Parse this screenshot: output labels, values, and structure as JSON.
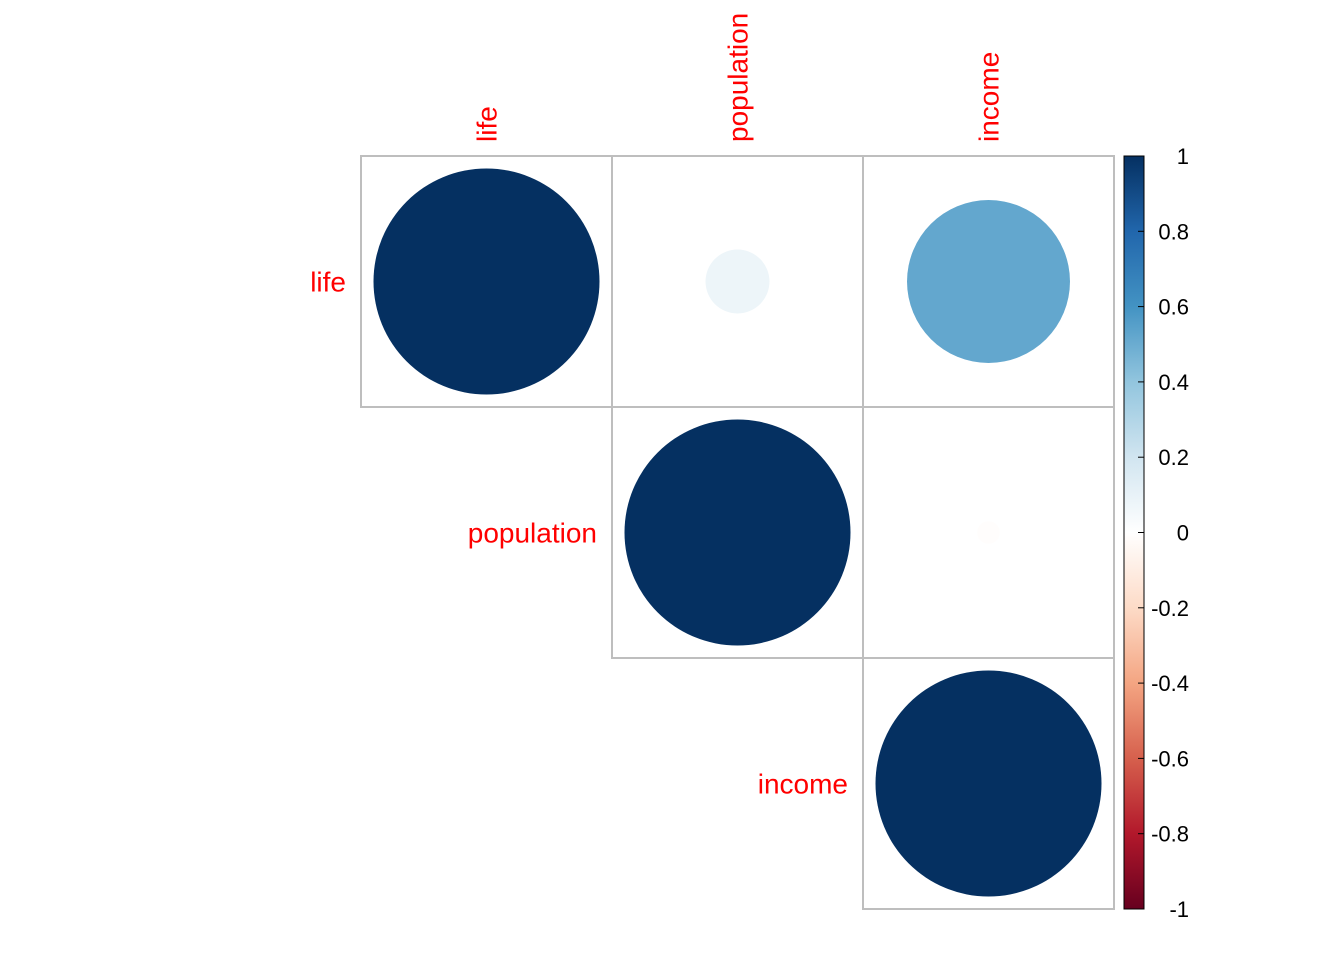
{
  "chart_data": {
    "type": "heatmap",
    "subtype": "correlation-matrix-upper-circles",
    "variables": [
      "life",
      "population",
      "income"
    ],
    "matrix": [
      [
        1.0,
        0.08,
        0.52
      ],
      [
        0.08,
        1.0,
        -0.01
      ],
      [
        0.52,
        -0.01,
        1.0
      ]
    ],
    "colorbar": {
      "range": [
        -1,
        1
      ],
      "tick_labels": [
        "1",
        "0.8",
        "0.6",
        "0.4",
        "0.2",
        "0",
        "-0.2",
        "-0.4",
        "-0.6",
        "-0.8",
        "-1"
      ],
      "tick_values": [
        1,
        0.8,
        0.6,
        0.4,
        0.2,
        0,
        -0.2,
        -0.4,
        -0.6,
        -0.8,
        -1
      ],
      "stops": [
        {
          "value": -1.0,
          "color": "#67001F"
        },
        {
          "value": -0.8,
          "color": "#B2182B"
        },
        {
          "value": -0.6,
          "color": "#D6604D"
        },
        {
          "value": -0.4,
          "color": "#F4A582"
        },
        {
          "value": -0.2,
          "color": "#FDDBC7"
        },
        {
          "value": 0.0,
          "color": "#FFFFFF"
        },
        {
          "value": 0.2,
          "color": "#D1E5F0"
        },
        {
          "value": 0.4,
          "color": "#92C5DE"
        },
        {
          "value": 0.6,
          "color": "#4393C3"
        },
        {
          "value": 0.8,
          "color": "#2166AC"
        },
        {
          "value": 1.0,
          "color": "#053061"
        }
      ]
    },
    "label_color": "#FF0000",
    "grid_color": "#BEBEBE",
    "legend_position": "right"
  }
}
